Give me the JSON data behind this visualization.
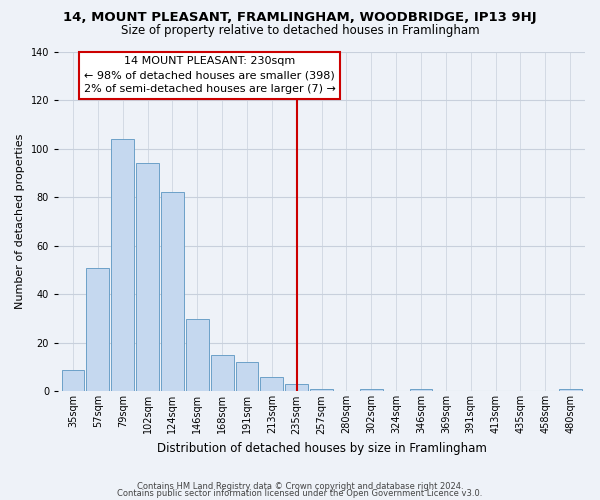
{
  "title": "14, MOUNT PLEASANT, FRAMLINGHAM, WOODBRIDGE, IP13 9HJ",
  "subtitle": "Size of property relative to detached houses in Framlingham",
  "xlabel": "Distribution of detached houses by size in Framlingham",
  "ylabel": "Number of detached properties",
  "bar_labels": [
    "35sqm",
    "57sqm",
    "79sqm",
    "102sqm",
    "124sqm",
    "146sqm",
    "168sqm",
    "191sqm",
    "213sqm",
    "235sqm",
    "257sqm",
    "280sqm",
    "302sqm",
    "324sqm",
    "346sqm",
    "369sqm",
    "391sqm",
    "413sqm",
    "435sqm",
    "458sqm",
    "480sqm"
  ],
  "bar_values": [
    9,
    51,
    104,
    94,
    82,
    30,
    15,
    12,
    6,
    3,
    1,
    0,
    1,
    0,
    1,
    0,
    0,
    0,
    0,
    0,
    1
  ],
  "bar_color": "#c5d8ef",
  "bar_edge_color": "#6ca0c8",
  "vline_x_idx": 9,
  "vline_color": "#cc0000",
  "annotation_title": "14 MOUNT PLEASANT: 230sqm",
  "annotation_line1": "← 98% of detached houses are smaller (398)",
  "annotation_line2": "2% of semi-detached houses are larger (7) →",
  "annotation_box_color": "#ffffff",
  "annotation_box_edge": "#cc0000",
  "ylim": [
    0,
    140
  ],
  "yticks": [
    0,
    20,
    40,
    60,
    80,
    100,
    120,
    140
  ],
  "footer_line1": "Contains HM Land Registry data © Crown copyright and database right 2024.",
  "footer_line2": "Contains public sector information licensed under the Open Government Licence v3.0.",
  "bg_color": "#eef2f8",
  "grid_color": "#c8d0dc",
  "title_fontsize": 9.5,
  "subtitle_fontsize": 8.5,
  "ylabel_fontsize": 8,
  "xlabel_fontsize": 8.5,
  "tick_fontsize": 7,
  "footer_fontsize": 6,
  "annot_fontsize": 8
}
